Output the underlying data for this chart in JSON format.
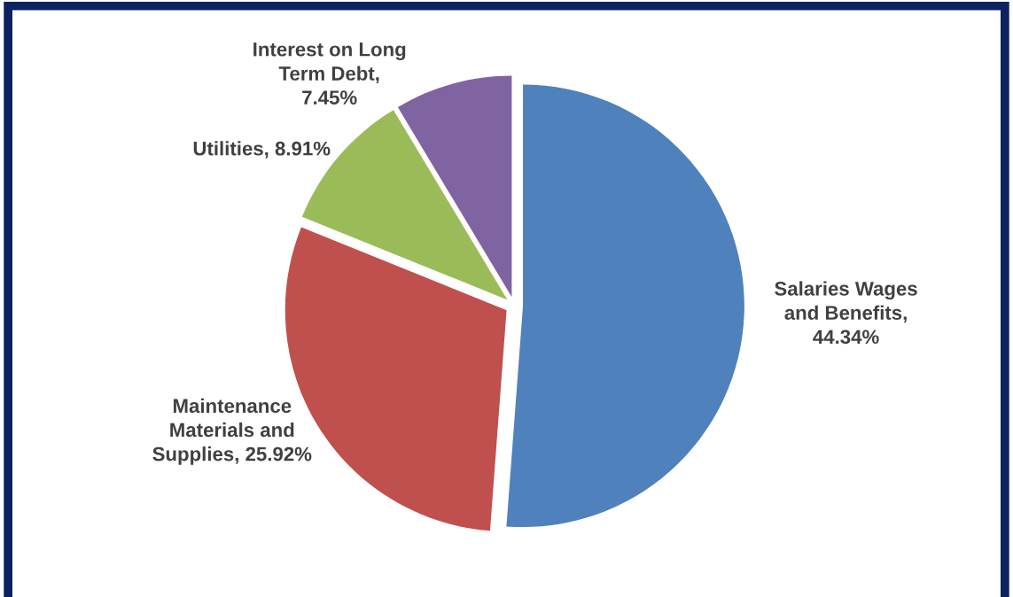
{
  "chart_data": {
    "type": "pie",
    "categories": [
      "Salaries Wages\nand Benefits,\n44.34%",
      "Maintenance\nMaterials and\nSupplies, 25.92%",
      "Utilities, 8.91%",
      "Interest on Long\nTerm Debt,\n7.45%"
    ],
    "values": [
      44.34,
      25.92,
      8.91,
      7.45
    ],
    "colors": [
      "#4f81bd",
      "#c0504d",
      "#9bbb59",
      "#8064a2"
    ]
  }
}
